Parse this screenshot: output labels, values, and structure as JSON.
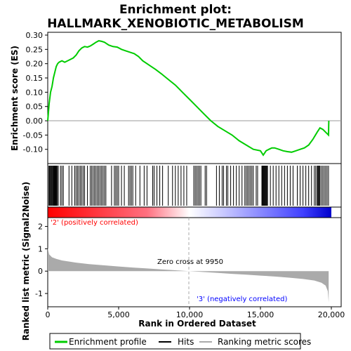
{
  "title_line1": "Enrichment plot:",
  "title_line2": "HALLMARK_XENOBIOTIC_METABOLISM",
  "colors": {
    "es_line": "#00cc00",
    "hits": "#000000",
    "metric_fill": "#aaaaaa",
    "pos_label": "#ff0000",
    "neg_label": "#0000ff",
    "zero_line": "#aaaaaa",
    "heat_pos": "#ff0000",
    "heat_neg": "#0000ff"
  },
  "chart_data": [
    {
      "type": "line",
      "name": "enrichment",
      "ylabel": "Enrichment score (ES)",
      "xlim": [
        0,
        20000
      ],
      "ylim": [
        -0.14,
        0.3
      ],
      "yticks": [
        -0.1,
        -0.05,
        0.0,
        0.05,
        0.1,
        0.15,
        0.2,
        0.25,
        0.3
      ],
      "ytick_labels": [
        "-0.10",
        "-0.05",
        "0.00",
        "0.05",
        "0.10",
        "0.15",
        "0.20",
        "0.25",
        "0.30"
      ],
      "x": [
        0,
        100,
        200,
        300,
        400,
        500,
        600,
        700,
        800,
        1000,
        1200,
        1400,
        1600,
        1800,
        2000,
        2200,
        2400,
        2600,
        2800,
        3000,
        3200,
        3400,
        3600,
        3800,
        4000,
        4300,
        4600,
        4900,
        5200,
        5500,
        5800,
        6100,
        6400,
        6700,
        7000,
        7300,
        7600,
        8000,
        8500,
        9000,
        9500,
        10000,
        10500,
        11000,
        11500,
        12000,
        12500,
        13000,
        13500,
        14000,
        14500,
        15000,
        15200,
        15400,
        15600,
        15800,
        16000,
        16300,
        16600,
        16900,
        17200,
        17500,
        17800,
        18100,
        18400,
        18700,
        19000,
        19200,
        19400,
        19600,
        19800,
        19810,
        19820
      ],
      "y": [
        0.0,
        0.06,
        0.1,
        0.12,
        0.15,
        0.17,
        0.19,
        0.2,
        0.205,
        0.21,
        0.205,
        0.21,
        0.215,
        0.22,
        0.23,
        0.245,
        0.255,
        0.26,
        0.258,
        0.262,
        0.268,
        0.275,
        0.28,
        0.278,
        0.275,
        0.265,
        0.26,
        0.258,
        0.25,
        0.245,
        0.24,
        0.235,
        0.225,
        0.21,
        0.2,
        0.19,
        0.18,
        0.165,
        0.145,
        0.125,
        0.1,
        0.075,
        0.05,
        0.025,
        0.0,
        -0.02,
        -0.035,
        -0.05,
        -0.07,
        -0.085,
        -0.1,
        -0.105,
        -0.12,
        -0.105,
        -0.1,
        -0.095,
        -0.095,
        -0.1,
        -0.105,
        -0.108,
        -0.11,
        -0.105,
        -0.1,
        -0.095,
        -0.085,
        -0.065,
        -0.04,
        -0.025,
        -0.03,
        -0.04,
        -0.05,
        -0.02,
        0.0
      ]
    },
    {
      "type": "bar",
      "name": "hits",
      "positions": [
        80,
        120,
        180,
        230,
        280,
        330,
        380,
        420,
        460,
        500,
        540,
        580,
        620,
        680,
        740,
        900,
        1000,
        1100,
        1500,
        1700,
        1900,
        2000,
        2100,
        2200,
        2300,
        2400,
        2500,
        2600,
        2800,
        3000,
        3100,
        3200,
        3300,
        3400,
        3500,
        3600,
        3700,
        3800,
        3900,
        4000,
        4100,
        4500,
        4700,
        4800,
        4900,
        5000,
        5200,
        5400,
        5700,
        5800,
        5900,
        6000,
        6200,
        6500,
        6800,
        7000,
        7400,
        7500,
        7700,
        7900,
        8100,
        8500,
        8800,
        9000,
        9200,
        9400,
        9600,
        9800,
        10300,
        10400,
        10500,
        10600,
        10700,
        10800,
        11100,
        11200,
        11900,
        12100,
        12300,
        12400,
        12600,
        12700,
        12900,
        13100,
        13300,
        13500,
        13700,
        13900,
        14000,
        14100,
        14200,
        14300,
        14400,
        14500,
        14700,
        14800,
        15100,
        15150,
        15200,
        15250,
        15300,
        15350,
        15400,
        15450,
        15500,
        15700,
        15900,
        16100,
        16300,
        16500,
        16700,
        16900,
        17100,
        17300,
        17600,
        17800,
        18000,
        18200,
        18400,
        18600,
        18800,
        18900,
        19000,
        19050,
        19100,
        19150,
        19200,
        19300,
        19400,
        19500,
        19600,
        19700,
        19800
      ]
    },
    {
      "type": "area",
      "name": "ranked_metric",
      "xlabel": "Rank in Ordered Dataset",
      "ylabel": "Ranked list metric (Signal2Noise)",
      "xlim": [
        0,
        20000
      ],
      "ylim": [
        -1.5,
        2.3
      ],
      "xticks": [
        0,
        5000,
        10000,
        15000,
        20000
      ],
      "xtick_labels": [
        "0",
        "5,000",
        "10,000",
        "15,000",
        "20,000"
      ],
      "yticks": [
        -1,
        0,
        1,
        2
      ],
      "ytick_labels": [
        "-1",
        "0",
        "1",
        "2"
      ],
      "x": [
        0,
        30,
        100,
        300,
        600,
        1000,
        2000,
        3000,
        4000,
        5000,
        6000,
        7000,
        8000,
        9000,
        9950,
        11000,
        12000,
        13000,
        14000,
        15000,
        16000,
        17000,
        18000,
        18800,
        19300,
        19600,
        19750,
        19810
      ],
      "y": [
        1.05,
        0.95,
        0.75,
        0.62,
        0.55,
        0.48,
        0.38,
        0.31,
        0.26,
        0.21,
        0.16,
        0.12,
        0.08,
        0.04,
        0.0,
        -0.04,
        -0.08,
        -0.12,
        -0.16,
        -0.2,
        -0.24,
        -0.29,
        -0.35,
        -0.42,
        -0.52,
        -0.65,
        -0.9,
        -1.4
      ],
      "zero_cross_label": "Zero cross at 9950",
      "zero_cross_rank": 9950,
      "pos_label": "'2' (positively correlated)",
      "neg_label": "'3' (negatively correlated)"
    }
  ],
  "legend": {
    "items": [
      {
        "label": "Enrichment profile",
        "color": "#00cc00",
        "kind": "line"
      },
      {
        "label": "Hits",
        "color": "#000000",
        "kind": "line"
      },
      {
        "label": "Ranking metric scores",
        "color": "#aaaaaa",
        "kind": "line"
      }
    ]
  }
}
